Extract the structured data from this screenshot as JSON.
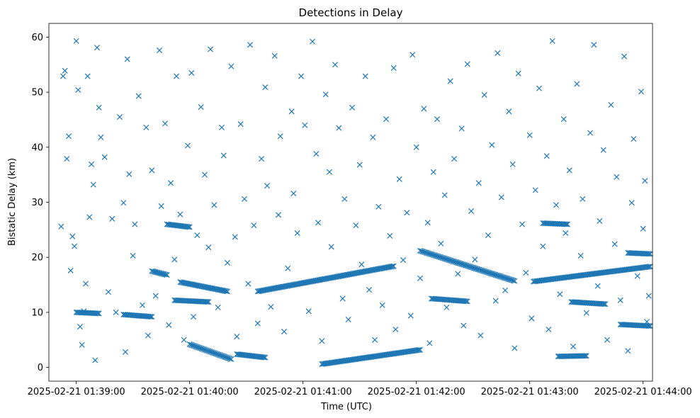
{
  "chart_data": {
    "type": "scatter",
    "title": "Detections in Delay",
    "xlabel": "Time (UTC)",
    "ylabel": "Bistatic Delay (km)",
    "marker": "x",
    "color": "#1f77b4",
    "x_unit": "seconds after 2025-02-21 01:39:00",
    "xlim": [
      -14.5,
      305
    ],
    "ylim": [
      -2.5,
      62.5
    ],
    "xticks": [
      0,
      60,
      120,
      180,
      240,
      300
    ],
    "xtick_labels": [
      "2025-02-21 01:39:00",
      "2025-02-21 01:40:00",
      "2025-02-21 01:41:00",
      "2025-02-21 01:42:00",
      "2025-02-21 01:43:00",
      "2025-02-21 01:44:00"
    ],
    "yticks": [
      0,
      10,
      20,
      30,
      40,
      50,
      60
    ],
    "ytick_labels": [
      "0",
      "10",
      "20",
      "30",
      "40",
      "50",
      "60"
    ],
    "tracks": [
      {
        "x_start": 0,
        "x_end": 12,
        "y_start": 10.0,
        "y_end": 9.8
      },
      {
        "x_start": 25,
        "x_end": 40,
        "y_start": 9.6,
        "y_end": 9.2
      },
      {
        "x_start": 40,
        "x_end": 48,
        "y_start": 17.5,
        "y_end": 16.8
      },
      {
        "x_start": 48,
        "x_end": 60,
        "y_start": 26.0,
        "y_end": 25.5
      },
      {
        "x_start": 52,
        "x_end": 70,
        "y_start": 12.2,
        "y_end": 11.9
      },
      {
        "x_start": 55,
        "x_end": 80,
        "y_start": 15.5,
        "y_end": 13.8
      },
      {
        "x_start": 60,
        "x_end": 82,
        "y_start": 4.2,
        "y_end": 1.5
      },
      {
        "x_start": 96,
        "x_end": 168,
        "y_start": 13.8,
        "y_end": 18.4
      },
      {
        "x_start": 85,
        "x_end": 100,
        "y_start": 2.4,
        "y_end": 1.8
      },
      {
        "x_start": 130,
        "x_end": 182,
        "y_start": 0.6,
        "y_end": 3.2
      },
      {
        "x_start": 188,
        "x_end": 207,
        "y_start": 12.5,
        "y_end": 12.0
      },
      {
        "x_start": 182,
        "x_end": 232,
        "y_start": 21.2,
        "y_end": 15.7
      },
      {
        "x_start": 242,
        "x_end": 310,
        "y_start": 15.6,
        "y_end": 18.6
      },
      {
        "x_start": 247,
        "x_end": 260,
        "y_start": 26.2,
        "y_end": 26.0
      },
      {
        "x_start": 255,
        "x_end": 270,
        "y_start": 2.0,
        "y_end": 2.1
      },
      {
        "x_start": 262,
        "x_end": 280,
        "y_start": 11.9,
        "y_end": 11.5
      },
      {
        "x_start": 288,
        "x_end": 305,
        "y_start": 7.8,
        "y_end": 7.5
      },
      {
        "x_start": 292,
        "x_end": 305,
        "y_start": 20.8,
        "y_end": 20.6
      }
    ],
    "scatter_points": [
      [
        -8,
        25.6
      ],
      [
        -7,
        52.9
      ],
      [
        -6,
        53.9
      ],
      [
        -5,
        37.9
      ],
      [
        -4,
        42.0
      ],
      [
        -3,
        17.6
      ],
      [
        -2,
        23.8
      ],
      [
        -1,
        22.0
      ],
      [
        0,
        59.3
      ],
      [
        1,
        50.4
      ],
      [
        2,
        7.4
      ],
      [
        3,
        4.1
      ],
      [
        4,
        10.2
      ],
      [
        5,
        15.2
      ],
      [
        6,
        52.9
      ],
      [
        7,
        27.3
      ],
      [
        8,
        36.9
      ],
      [
        9,
        33.2
      ],
      [
        10,
        1.3
      ],
      [
        11,
        58.1
      ],
      [
        12,
        47.2
      ],
      [
        13,
        41.8
      ],
      [
        15,
        38.2
      ],
      [
        17,
        13.7
      ],
      [
        19,
        27.0
      ],
      [
        21,
        10.0
      ],
      [
        23,
        45.5
      ],
      [
        25,
        29.9
      ],
      [
        26,
        2.8
      ],
      [
        27,
        56.0
      ],
      [
        28,
        35.1
      ],
      [
        30,
        20.3
      ],
      [
        31,
        26.0
      ],
      [
        33,
        49.3
      ],
      [
        35,
        11.3
      ],
      [
        37,
        43.6
      ],
      [
        38,
        5.8
      ],
      [
        40,
        35.8
      ],
      [
        42,
        13.0
      ],
      [
        44,
        57.6
      ],
      [
        45,
        29.3
      ],
      [
        47,
        44.3
      ],
      [
        49,
        7.7
      ],
      [
        50,
        33.5
      ],
      [
        52,
        19.6
      ],
      [
        53,
        52.9
      ],
      [
        55,
        27.8
      ],
      [
        57,
        5.0
      ],
      [
        59,
        40.3
      ],
      [
        61,
        53.5
      ],
      [
        62,
        9.2
      ],
      [
        64,
        24.0
      ],
      [
        66,
        47.3
      ],
      [
        68,
        35.0
      ],
      [
        70,
        21.8
      ],
      [
        71,
        57.8
      ],
      [
        73,
        29.5
      ],
      [
        75,
        10.9
      ],
      [
        77,
        43.6
      ],
      [
        78,
        38.5
      ],
      [
        80,
        19.0
      ],
      [
        82,
        54.7
      ],
      [
        84,
        23.7
      ],
      [
        85,
        5.6
      ],
      [
        87,
        44.2
      ],
      [
        89,
        30.6
      ],
      [
        91,
        15.2
      ],
      [
        92,
        58.6
      ],
      [
        94,
        25.8
      ],
      [
        96,
        8.0
      ],
      [
        98,
        37.9
      ],
      [
        100,
        50.9
      ],
      [
        101,
        33.0
      ],
      [
        103,
        11.0
      ],
      [
        105,
        56.6
      ],
      [
        107,
        27.7
      ],
      [
        108,
        42.0
      ],
      [
        110,
        6.5
      ],
      [
        112,
        18.0
      ],
      [
        114,
        46.5
      ],
      [
        115,
        31.6
      ],
      [
        117,
        24.4
      ],
      [
        119,
        52.9
      ],
      [
        121,
        44.0
      ],
      [
        123,
        10.2
      ],
      [
        125,
        59.2
      ],
      [
        127,
        38.8
      ],
      [
        128,
        26.3
      ],
      [
        130,
        4.8
      ],
      [
        132,
        49.6
      ],
      [
        134,
        35.5
      ],
      [
        135,
        21.9
      ],
      [
        137,
        55.0
      ],
      [
        139,
        43.5
      ],
      [
        141,
        12.5
      ],
      [
        142,
        30.6
      ],
      [
        144,
        8.7
      ],
      [
        146,
        47.2
      ],
      [
        148,
        25.8
      ],
      [
        150,
        36.8
      ],
      [
        151,
        18.7
      ],
      [
        153,
        52.9
      ],
      [
        155,
        14.1
      ],
      [
        157,
        41.8
      ],
      [
        158,
        5.0
      ],
      [
        160,
        29.2
      ],
      [
        162,
        11.3
      ],
      [
        164,
        45.1
      ],
      [
        166,
        23.9
      ],
      [
        168,
        54.4
      ],
      [
        169,
        6.9
      ],
      [
        171,
        34.2
      ],
      [
        173,
        19.5
      ],
      [
        175,
        28.1
      ],
      [
        177,
        9.4
      ],
      [
        178,
        56.8
      ],
      [
        180,
        40.0
      ],
      [
        182,
        16.2
      ],
      [
        184,
        47.0
      ],
      [
        186,
        26.3
      ],
      [
        187,
        4.4
      ],
      [
        189,
        35.5
      ],
      [
        191,
        45.1
      ],
      [
        193,
        22.5
      ],
      [
        195,
        31.3
      ],
      [
        196,
        10.9
      ],
      [
        198,
        52.0
      ],
      [
        200,
        37.9
      ],
      [
        202,
        17.0
      ],
      [
        204,
        43.4
      ],
      [
        205,
        7.6
      ],
      [
        207,
        55.1
      ],
      [
        209,
        28.4
      ],
      [
        211,
        19.6
      ],
      [
        213,
        33.5
      ],
      [
        214,
        5.8
      ],
      [
        216,
        49.5
      ],
      [
        218,
        24.0
      ],
      [
        220,
        40.4
      ],
      [
        222,
        12.1
      ],
      [
        223,
        57.1
      ],
      [
        225,
        30.9
      ],
      [
        227,
        14.0
      ],
      [
        229,
        46.5
      ],
      [
        231,
        36.9
      ],
      [
        232,
        3.5
      ],
      [
        234,
        53.4
      ],
      [
        236,
        26.0
      ],
      [
        238,
        17.2
      ],
      [
        240,
        42.2
      ],
      [
        241,
        8.9
      ],
      [
        243,
        32.2
      ],
      [
        245,
        50.7
      ],
      [
        247,
        22.0
      ],
      [
        249,
        38.4
      ],
      [
        250,
        6.9
      ],
      [
        252,
        59.3
      ],
      [
        254,
        29.5
      ],
      [
        256,
        13.3
      ],
      [
        258,
        45.1
      ],
      [
        259,
        24.4
      ],
      [
        261,
        35.8
      ],
      [
        263,
        3.8
      ],
      [
        265,
        51.5
      ],
      [
        267,
        20.3
      ],
      [
        268,
        30.6
      ],
      [
        270,
        9.9
      ],
      [
        272,
        42.6
      ],
      [
        274,
        58.6
      ],
      [
        276,
        14.8
      ],
      [
        277,
        26.6
      ],
      [
        279,
        39.5
      ],
      [
        281,
        5.0
      ],
      [
        283,
        47.7
      ],
      [
        285,
        22.4
      ],
      [
        286,
        34.6
      ],
      [
        288,
        12.2
      ],
      [
        290,
        56.5
      ],
      [
        292,
        3.0
      ],
      [
        294,
        29.9
      ],
      [
        295,
        41.5
      ],
      [
        297,
        16.6
      ],
      [
        299,
        50.1
      ],
      [
        300,
        25.2
      ],
      [
        301,
        33.9
      ],
      [
        302,
        8.3
      ],
      [
        303,
        13.0
      ]
    ]
  }
}
